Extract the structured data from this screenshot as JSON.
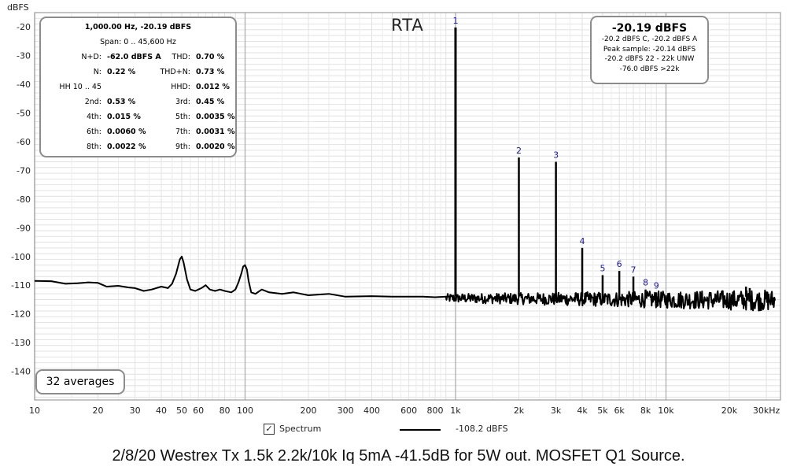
{
  "chart_data": {
    "type": "line",
    "title": "RTA",
    "ylabel": "dBFS",
    "xlabel": "",
    "x_scale": "log",
    "xlim": [
      10,
      35000
    ],
    "ylim": [
      -150,
      -15
    ],
    "grid": true,
    "x_ticks": [
      {
        "v": 10,
        "label": "10"
      },
      {
        "v": 20,
        "label": "20"
      },
      {
        "v": 30,
        "label": "30"
      },
      {
        "v": 40,
        "label": "40"
      },
      {
        "v": 50,
        "label": "50"
      },
      {
        "v": 60,
        "label": "60"
      },
      {
        "v": 80,
        "label": "80"
      },
      {
        "v": 100,
        "label": "100"
      },
      {
        "v": 200,
        "label": "200"
      },
      {
        "v": 300,
        "label": "300"
      },
      {
        "v": 400,
        "label": "400"
      },
      {
        "v": 600,
        "label": "600"
      },
      {
        "v": 800,
        "label": "800"
      },
      {
        "v": 1000,
        "label": "1k"
      },
      {
        "v": 2000,
        "label": "2k"
      },
      {
        "v": 3000,
        "label": "3k"
      },
      {
        "v": 4000,
        "label": "4k"
      },
      {
        "v": 5000,
        "label": "5k"
      },
      {
        "v": 6000,
        "label": "6k"
      },
      {
        "v": 8000,
        "label": "8k"
      },
      {
        "v": 10000,
        "label": "10k"
      },
      {
        "v": 20000,
        "label": "20k"
      },
      {
        "v": 30000,
        "label": "30kHz"
      }
    ],
    "y_ticks": [
      {
        "v": -20,
        "label": "-20"
      },
      {
        "v": -30,
        "label": "-30"
      },
      {
        "v": -40,
        "label": "-40"
      },
      {
        "v": -50,
        "label": "-50"
      },
      {
        "v": -60,
        "label": "-60"
      },
      {
        "v": -70,
        "label": "-70"
      },
      {
        "v": -80,
        "label": "-80"
      },
      {
        "v": -90,
        "label": "-90"
      },
      {
        "v": -100,
        "label": "-100"
      },
      {
        "v": -110,
        "label": "-110"
      },
      {
        "v": -120,
        "label": "-120"
      },
      {
        "v": -130,
        "label": "-130"
      },
      {
        "v": -140,
        "label": "-140"
      }
    ],
    "series": [
      {
        "name": "Spectrum",
        "color": "#000000",
        "points": [
          [
            10,
            -108.5
          ],
          [
            12,
            -108.6
          ],
          [
            14,
            -109.5
          ],
          [
            16,
            -109.3
          ],
          [
            18,
            -109.0
          ],
          [
            20,
            -109.2
          ],
          [
            22,
            -110.5
          ],
          [
            25,
            -110.2
          ],
          [
            28,
            -110.8
          ],
          [
            30,
            -111.0
          ],
          [
            33,
            -112.0
          ],
          [
            36,
            -111.5
          ],
          [
            40,
            -110.5
          ],
          [
            43,
            -111.0
          ],
          [
            45,
            -109.5
          ],
          [
            47,
            -106.0
          ],
          [
            49,
            -101.0
          ],
          [
            50,
            -100.0
          ],
          [
            51,
            -102.0
          ],
          [
            53,
            -108.0
          ],
          [
            55,
            -111.5
          ],
          [
            58,
            -112.0
          ],
          [
            62,
            -111.0
          ],
          [
            65,
            -110.0
          ],
          [
            68,
            -111.5
          ],
          [
            72,
            -112.0
          ],
          [
            76,
            -111.5
          ],
          [
            80,
            -112.0
          ],
          [
            86,
            -112.5
          ],
          [
            90,
            -111.5
          ],
          [
            93,
            -109.0
          ],
          [
            96,
            -106.0
          ],
          [
            98,
            -103.5
          ],
          [
            100,
            -103.0
          ],
          [
            102,
            -104.5
          ],
          [
            104,
            -108.5
          ],
          [
            107,
            -112.5
          ],
          [
            112,
            -113.0
          ],
          [
            120,
            -111.5
          ],
          [
            130,
            -112.5
          ],
          [
            150,
            -113.0
          ],
          [
            170,
            -112.5
          ],
          [
            200,
            -113.5
          ],
          [
            250,
            -113.0
          ],
          [
            300,
            -114.0
          ],
          [
            400,
            -113.8
          ],
          [
            500,
            -114.0
          ],
          [
            600,
            -114.0
          ],
          [
            700,
            -114.0
          ],
          [
            800,
            -114.2
          ],
          [
            900,
            -114.0
          ]
        ],
        "noise_floor": {
          "from": 150,
          "to": 33000,
          "level": -114.5,
          "spread": 2.5
        },
        "peaks": [
          {
            "x": 1000,
            "y": -20.19,
            "label": "1"
          },
          {
            "x": 2000,
            "y": -65.5,
            "label": "2"
          },
          {
            "x": 3000,
            "y": -67.0,
            "label": "3"
          },
          {
            "x": 4000,
            "y": -97.0,
            "label": "4"
          },
          {
            "x": 5000,
            "y": -106.5,
            "label": "5"
          },
          {
            "x": 6000,
            "y": -105.0,
            "label": "6"
          },
          {
            "x": 7000,
            "y": -107.0,
            "label": "7"
          },
          {
            "x": 8000,
            "y": -111.5,
            "label": "8"
          },
          {
            "x": 9000,
            "y": -112.5,
            "label": "9"
          },
          {
            "x": 24000,
            "y": -110.5,
            "label": ""
          },
          {
            "x": 25000,
            "y": -111.0,
            "label": ""
          }
        ]
      }
    ]
  },
  "stats": {
    "header1": "1,000.00 Hz, -20.19 dBFS",
    "header2": "Span: 0 .. 45,600 Hz",
    "rows": [
      {
        "l1": "N+D:",
        "v1": "-62.0 dBFS A",
        "l2": "THD:",
        "v2": "0.70 %"
      },
      {
        "l1": "N:",
        "v1": "0.22 %",
        "l2": "THD+N:",
        "v2": "0.73 %"
      },
      {
        "l1": "HH 10 .. 45",
        "v1": "",
        "l2": "HHD:",
        "v2": "0.012 %"
      },
      {
        "l1": "2nd:",
        "v1": "0.53 %",
        "l2": "3rd:",
        "v2": "0.45 %"
      },
      {
        "l1": "4th:",
        "v1": "0.015 %",
        "l2": "5th:",
        "v2": "0.0035 %"
      },
      {
        "l1": "6th:",
        "v1": "0.0060 %",
        "l2": "7th:",
        "v2": "0.0031 %"
      },
      {
        "l1": "8th:",
        "v1": "0.0022 %",
        "l2": "9th:",
        "v2": "0.0020 %"
      }
    ]
  },
  "level": {
    "main": "-20.19 dBFS",
    "line1": "-20.2 dBFS C, -20.2 dBFS A",
    "line2": "Peak sample: -20.14 dBFS",
    "line3": "-20.2 dBFS 22 - 22k UNW",
    "line4": "-76.0 dBFS >22k"
  },
  "averages": "32 averages",
  "legend": {
    "checked": true,
    "series_name": "Spectrum",
    "value": "-108.2 dBFS"
  },
  "caption": "2/8/20 Westrex Tx 1.5k 2.2k/10k Iq 5mA -41.5dB for 5W out. MOSFET Q1 Source.",
  "colors": {
    "trace": "#000000",
    "grid_minor": "#e2e2e2",
    "grid_major": "#c4c4c4",
    "harmonic_label": "#1a1aa0",
    "box_border": "#8c8c8c"
  }
}
